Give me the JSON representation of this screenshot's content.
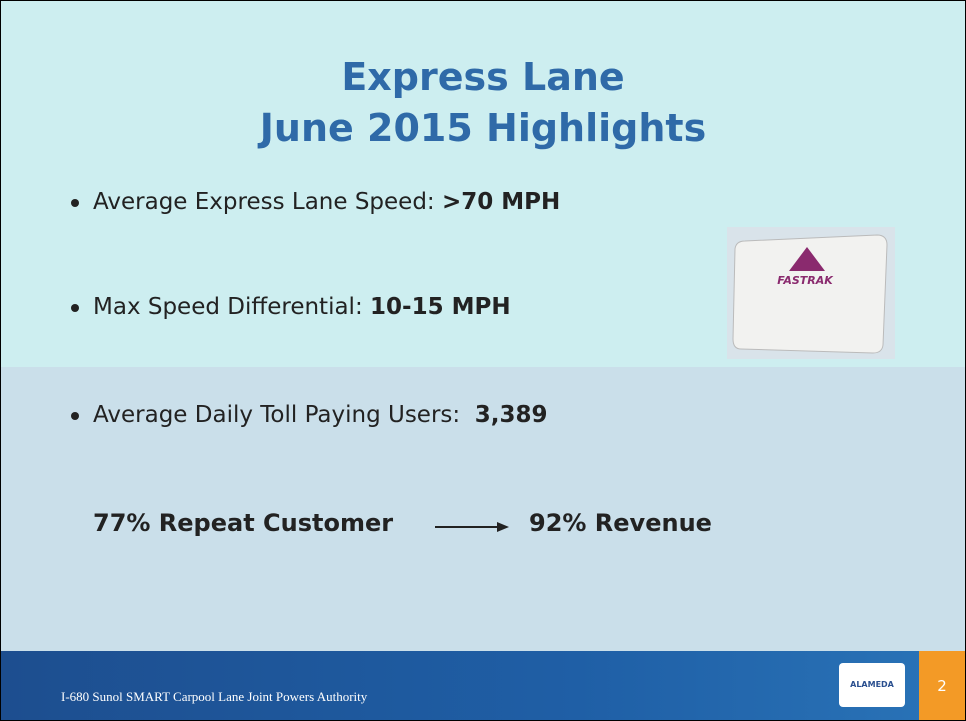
{
  "header": {
    "title": [
      "Express Lane",
      "June 2015 Highlights"
    ]
  },
  "bullets": [
    {
      "label": "Average Express Lane Speed:",
      "value": ">70 MPH"
    },
    {
      "label": "Max Speed Differential:",
      "value": "10-15 MPH"
    },
    {
      "label": "Average Daily Toll Paying Users:",
      "value": "3,389"
    }
  ],
  "highlight": {
    "left": "77% Repeat Customer",
    "right": "92% Revenue"
  },
  "image": {
    "label": "FASTRAK"
  },
  "footer": {
    "text": "I-680 Sunol SMART Carpool Lane Joint Powers Authority",
    "logo": "ALAMEDA",
    "page": "2"
  }
}
